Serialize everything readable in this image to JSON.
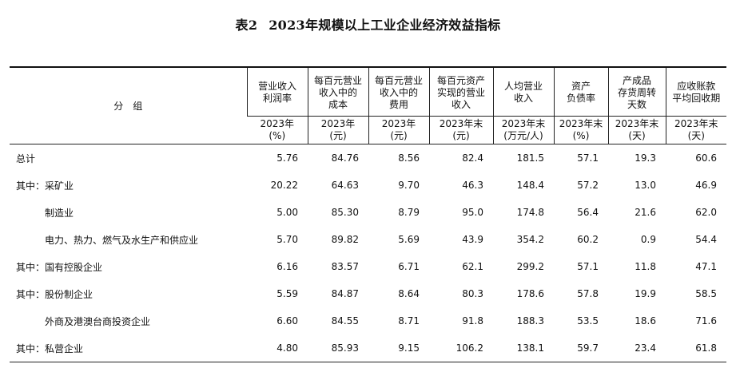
{
  "title": {
    "number": "表2",
    "text": "2023年规模以上工业企业经济效益指标"
  },
  "header": {
    "group_label": "分　组",
    "columns": [
      {
        "label": [
          "营业收入",
          "利润率"
        ],
        "unit": [
          "2023年",
          "(%)"
        ]
      },
      {
        "label": [
          "每百元营业",
          "收入中的",
          "成本"
        ],
        "unit": [
          "2023年",
          "(元)"
        ]
      },
      {
        "label": [
          "每百元营业",
          "收入中的",
          "费用"
        ],
        "unit": [
          "2023年",
          "(元)"
        ]
      },
      {
        "label": [
          "每百元资产",
          "实现的营业",
          "收入"
        ],
        "unit": [
          "2023年末",
          "(元)"
        ]
      },
      {
        "label": [
          "人均营业",
          "收入"
        ],
        "unit": [
          "2023年末",
          "(万元/人)"
        ]
      },
      {
        "label": [
          "资产",
          "负债率"
        ],
        "unit": [
          "2023年末",
          "(%)"
        ]
      },
      {
        "label": [
          "产成品",
          "存货周转",
          "天数"
        ],
        "unit": [
          "2023年末",
          "(天)"
        ]
      },
      {
        "label": [
          "应收账款",
          "平均回收期"
        ],
        "unit": [
          "2023年末",
          "(天)"
        ]
      }
    ]
  },
  "rows": [
    {
      "prefix": "",
      "name": "总计",
      "indent": false,
      "values": [
        "5.76",
        "84.76",
        "8.56",
        "82.4",
        "181.5",
        "57.1",
        "19.3",
        "60.6"
      ]
    },
    {
      "prefix": "其中：",
      "name": "采矿业",
      "indent": false,
      "values": [
        "20.22",
        "64.63",
        "9.70",
        "46.3",
        "148.4",
        "57.2",
        "13.0",
        "46.9"
      ]
    },
    {
      "prefix": "",
      "name": "制造业",
      "indent": true,
      "values": [
        "5.00",
        "85.30",
        "8.79",
        "95.0",
        "174.8",
        "56.4",
        "21.6",
        "62.0"
      ]
    },
    {
      "prefix": "",
      "name": "电力、热力、燃气及水生产和供应业",
      "indent": true,
      "values": [
        "5.70",
        "89.82",
        "5.69",
        "43.9",
        "354.2",
        "60.2",
        "0.9",
        "54.4"
      ]
    },
    {
      "prefix": "其中：",
      "name": "国有控股企业",
      "indent": false,
      "values": [
        "6.16",
        "83.57",
        "6.71",
        "62.1",
        "299.2",
        "57.1",
        "11.8",
        "47.1"
      ]
    },
    {
      "prefix": "其中：",
      "name": "股份制企业",
      "indent": false,
      "values": [
        "5.59",
        "84.87",
        "8.64",
        "80.3",
        "178.6",
        "57.8",
        "19.9",
        "58.5"
      ]
    },
    {
      "prefix": "",
      "name": "外商及港澳台商投资企业",
      "indent": true,
      "values": [
        "6.60",
        "84.55",
        "8.71",
        "91.8",
        "188.3",
        "53.5",
        "18.6",
        "71.6"
      ]
    },
    {
      "prefix": "其中：",
      "name": "私营企业",
      "indent": false,
      "values": [
        "4.80",
        "85.93",
        "9.15",
        "106.2",
        "138.1",
        "59.7",
        "23.4",
        "61.8"
      ]
    }
  ]
}
